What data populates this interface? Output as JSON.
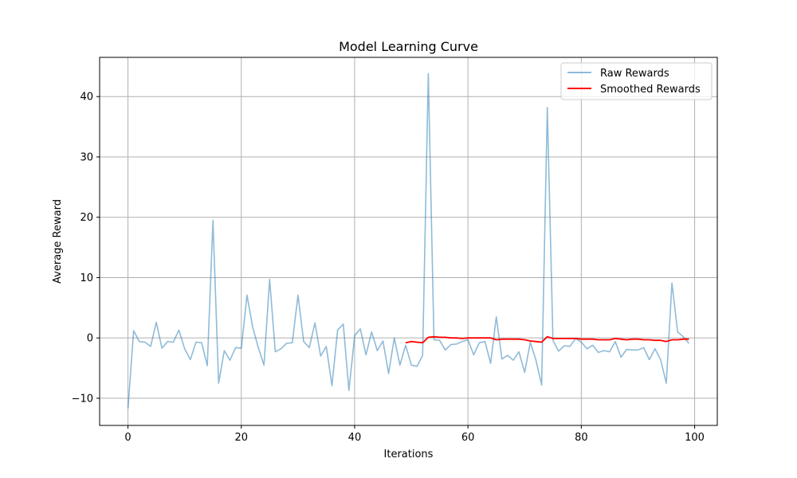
{
  "chart_data": {
    "type": "line",
    "title": "Model Learning Curve",
    "xlabel": "Iterations",
    "ylabel": "Average Reward",
    "xlim": [
      -5,
      104
    ],
    "ylim": [
      -14.5,
      46.5
    ],
    "x_ticks": [
      0,
      20,
      40,
      60,
      80,
      100
    ],
    "y_ticks": [
      -10,
      0,
      10,
      20,
      30,
      40
    ],
    "grid": true,
    "legend_position": "top-right",
    "series": [
      {
        "name": "Raw Rewards",
        "color": "#1f77b4",
        "opacity": 0.5,
        "x": [
          0,
          1,
          2,
          3,
          4,
          5,
          6,
          7,
          8,
          9,
          10,
          11,
          12,
          13,
          14,
          15,
          16,
          17,
          18,
          19,
          20,
          21,
          22,
          23,
          24,
          25,
          26,
          27,
          28,
          29,
          30,
          31,
          32,
          33,
          34,
          35,
          36,
          37,
          38,
          39,
          40,
          41,
          42,
          43,
          44,
          45,
          46,
          47,
          48,
          49,
          50,
          51,
          52,
          53,
          54,
          55,
          56,
          57,
          58,
          59,
          60,
          61,
          62,
          63,
          64,
          65,
          66,
          67,
          68,
          69,
          70,
          71,
          72,
          73,
          74,
          75,
          76,
          77,
          78,
          79,
          80,
          81,
          82,
          83,
          84,
          85,
          86,
          87,
          88,
          89,
          90,
          91,
          92,
          93,
          94,
          95,
          96,
          97,
          98,
          99
        ],
        "values": [
          -11.7,
          1.2,
          -0.6,
          -0.7,
          -1.4,
          2.6,
          -1.7,
          -0.6,
          -0.7,
          1.3,
          -1.8,
          -3.6,
          -0.7,
          -0.8,
          -4.6,
          19.5,
          -7.5,
          -2.1,
          -3.7,
          -1.6,
          -1.7,
          7.1,
          1.8,
          -1.6,
          -4.5,
          9.7,
          -2.3,
          -1.8,
          -0.9,
          -0.8,
          7.1,
          -0.6,
          -1.6,
          2.5,
          -3.0,
          -1.4,
          -7.9,
          1.3,
          2.3,
          -8.7,
          0.4,
          1.5,
          -2.8,
          1.0,
          -2.1,
          -0.5,
          -5.9,
          0.0,
          -4.5,
          -1.2,
          -4.5,
          -4.7,
          -2.9,
          43.8,
          -0.3,
          -0.4,
          -2.0,
          -1.1,
          -1.0,
          -0.6,
          -0.3,
          -2.8,
          -0.8,
          -0.6,
          -4.2,
          3.5,
          -3.5,
          -2.9,
          -3.7,
          -2.3,
          -5.7,
          -0.7,
          -3.7,
          -7.8,
          38.2,
          -0.4,
          -2.2,
          -1.3,
          -1.4,
          -0.1,
          -0.7,
          -1.8,
          -1.2,
          -2.4,
          -2.1,
          -2.3,
          -0.6,
          -3.2,
          -1.9,
          -2.0,
          -2.0,
          -1.6,
          -3.6,
          -1.8,
          -3.6,
          -7.5,
          9.1,
          1.0,
          0.2,
          -0.9
        ]
      },
      {
        "name": "Smoothed Rewards",
        "color": "#ff0000",
        "opacity": 1,
        "x": [
          49,
          50,
          51,
          52,
          53,
          54,
          55,
          56,
          57,
          58,
          59,
          60,
          61,
          62,
          63,
          64,
          65,
          66,
          67,
          68,
          69,
          70,
          71,
          72,
          73,
          74,
          75,
          76,
          77,
          78,
          79,
          80,
          81,
          82,
          83,
          84,
          85,
          86,
          87,
          88,
          89,
          90,
          91,
          92,
          93,
          94,
          95,
          96,
          97,
          98,
          99
        ],
        "values": [
          -0.8,
          -0.6,
          -0.7,
          -0.8,
          0.1,
          0.2,
          0.1,
          0.1,
          0.0,
          0.0,
          -0.1,
          0.0,
          0.0,
          0.0,
          0.0,
          0.0,
          -0.3,
          -0.2,
          -0.2,
          -0.2,
          -0.2,
          -0.3,
          -0.5,
          -0.6,
          -0.7,
          0.2,
          -0.1,
          -0.1,
          -0.1,
          -0.1,
          -0.1,
          -0.2,
          -0.2,
          -0.2,
          -0.3,
          -0.3,
          -0.3,
          -0.1,
          -0.2,
          -0.3,
          -0.2,
          -0.2,
          -0.3,
          -0.3,
          -0.4,
          -0.4,
          -0.6,
          -0.3,
          -0.3,
          -0.2,
          -0.2
        ]
      }
    ]
  }
}
